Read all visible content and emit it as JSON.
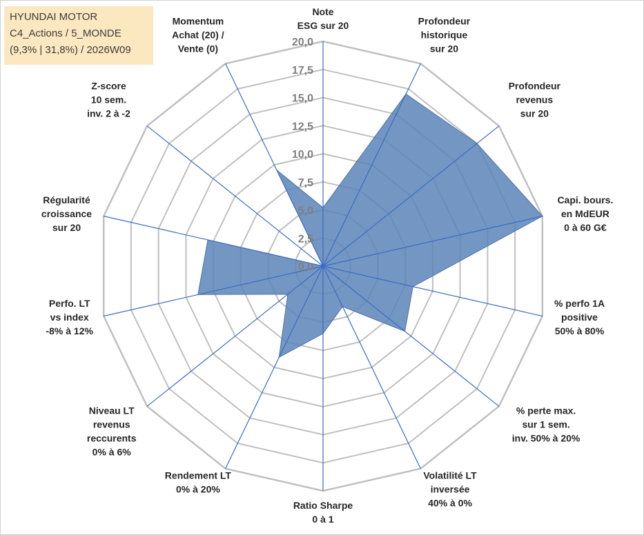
{
  "title_box": {
    "line1": "HYUNDAI MOTOR",
    "line2": "C4_Actions / 5_MONDE",
    "line3": "(9,3% | 31,8%) / 2026W09"
  },
  "chart_data": {
    "type": "radar",
    "r_min": 0,
    "r_max": 20,
    "tick_step": 2.5,
    "tick_labels": [
      "0,0",
      "2,5",
      "5,0",
      "7,5",
      "10,0",
      "12,5",
      "15,0",
      "17,5",
      "20,0"
    ],
    "axes": [
      {
        "label": [
          "Note",
          "ESG sur 20"
        ],
        "value": 5.2
      },
      {
        "label": [
          "Profondeur",
          "historique",
          "sur 20"
        ],
        "value": 17.0
      },
      {
        "label": [
          "Profondeur",
          "revenus",
          "sur 20"
        ],
        "value": 17.5
      },
      {
        "label": [
          "Capi. bours.",
          "en MdEUR",
          "0 à 60 G€"
        ],
        "value": 20.0
      },
      {
        "label": [
          "% perfo 1A",
          "positive",
          "50% à 80%"
        ],
        "value": 8.2
      },
      {
        "label": [
          "% perte max.",
          "sur 1 sem.",
          "inv. 50% à 20%"
        ],
        "value": 9.3
      },
      {
        "label": [
          "Volatilité LT",
          "inversée",
          "40% à 0%"
        ],
        "value": 4.0
      },
      {
        "label": [
          "Ratio Sharpe",
          "0 à 1"
        ],
        "value": 6.0
      },
      {
        "label": [
          "Rendement LT",
          "0% à 20%"
        ],
        "value": 9.0
      },
      {
        "label": [
          "Niveau LT",
          "revenus",
          "reccurents",
          "0% à 6%"
        ],
        "value": 4.0
      },
      {
        "label": [
          "Perfo. LT",
          "vs index",
          "-8% à 12%"
        ],
        "value": 11.4
      },
      {
        "label": [
          "Régularité",
          "croissance",
          "sur 20"
        ],
        "value": 10.5
      },
      {
        "label": [
          "Z-score",
          "10 sem.",
          "inv. 2 à -2"
        ],
        "value": 0.0
      },
      {
        "label": [
          "Momentum",
          "Achat (20) /",
          "Vente (0)"
        ],
        "value": 9.5
      }
    ],
    "series_color": "#5b84b8",
    "series_line_color": "#4a72a8",
    "grid_color": "#bfbfbf",
    "axis_line_color": "#3a6cc0"
  }
}
